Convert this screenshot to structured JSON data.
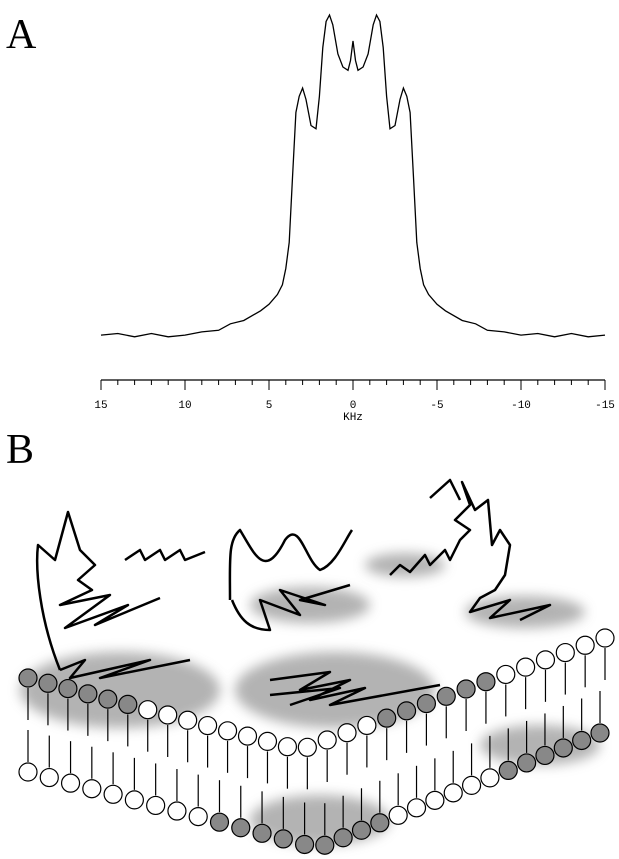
{
  "panels": [
    "A",
    "B"
  ],
  "chart_data": {
    "type": "line",
    "x_label": "KHz",
    "xlim": [
      15,
      -15
    ],
    "ylim": [
      0,
      100
    ],
    "xticks": [
      15,
      10,
      5,
      0,
      -5,
      -10,
      -15
    ],
    "xminorticks": [
      15,
      14,
      13,
      12,
      11,
      10,
      9,
      8,
      7,
      6,
      5,
      4,
      3,
      2,
      1,
      0,
      -1,
      -2,
      -3,
      -4,
      -5,
      -6,
      -7,
      -8,
      -9,
      -10,
      -11,
      -12,
      -13,
      -14,
      -15
    ],
    "color": "#000000",
    "x": [
      15,
      14,
      13,
      12,
      11,
      10,
      9,
      8,
      7.3,
      6.5,
      5.5,
      5,
      4.5,
      4.2,
      4,
      3.8,
      3.6,
      3.4,
      3.2,
      3,
      2.8,
      2.5,
      2.2,
      2,
      1.8,
      1.6,
      1.4,
      1.2,
      0.9,
      0.6,
      0.3,
      0.15,
      0,
      -0.15,
      -0.3,
      -0.6,
      -0.9,
      -1.2,
      -1.4,
      -1.6,
      -1.8,
      -2,
      -2.2,
      -2.5,
      -2.8,
      -3,
      -3.2,
      -3.4,
      -3.6,
      -3.8,
      -4,
      -4.2,
      -4.5,
      -5,
      -5.5,
      -6.5,
      -7.3,
      -8,
      -9,
      -10,
      -11,
      -12,
      -13,
      -14,
      -15
    ],
    "values": [
      1.5,
      2,
      1,
      2,
      1,
      1.5,
      2.5,
      3,
      5,
      6,
      9,
      11,
      14,
      17,
      22,
      30,
      50,
      70,
      75,
      77.5,
      74,
      66,
      65,
      75,
      90,
      98,
      100,
      97,
      88,
      84,
      83,
      86,
      92,
      86,
      83,
      84,
      88,
      97,
      100,
      98,
      90,
      75,
      65,
      66,
      74,
      77.5,
      75,
      70,
      50,
      30,
      22,
      17,
      14,
      11,
      9,
      6,
      5,
      3,
      2.5,
      1.5,
      2,
      1,
      2,
      1,
      1.5
    ]
  }
}
